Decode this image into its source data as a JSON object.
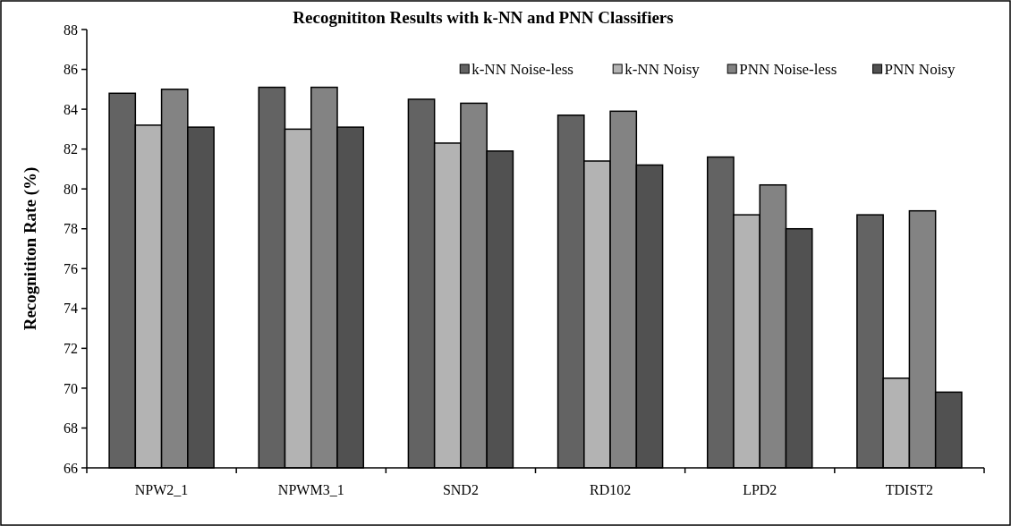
{
  "chart_data": {
    "type": "bar",
    "title": "Recognititon Results with k-NN and PNN Classifiers",
    "ylabel": "Recognititon Rate (%)",
    "categories": [
      "NPW2_1",
      "NPWM3_1",
      "SND2",
      "RD102",
      "LPD2",
      "TDIST2"
    ],
    "series": [
      {
        "name": "k-NN Noise-less",
        "color": "#636363",
        "values": [
          84.8,
          85.1,
          84.5,
          83.7,
          81.6,
          78.7
        ]
      },
      {
        "name": "k-NN Noisy",
        "color": "#b3b3b3",
        "values": [
          83.2,
          83.0,
          82.3,
          81.4,
          78.7,
          70.5
        ]
      },
      {
        "name": "PNN Noise-less",
        "color": "#838383",
        "values": [
          85.0,
          85.1,
          84.3,
          83.9,
          80.2,
          78.9
        ]
      },
      {
        "name": "PNN Noisy",
        "color": "#515151",
        "values": [
          83.1,
          83.1,
          81.9,
          81.2,
          78.0,
          69.8
        ]
      }
    ],
    "ylim": [
      66,
      88
    ],
    "yticks": [
      66,
      68,
      70,
      72,
      74,
      76,
      78,
      80,
      82,
      84,
      86,
      88
    ],
    "grid": false,
    "legend": "top right"
  }
}
